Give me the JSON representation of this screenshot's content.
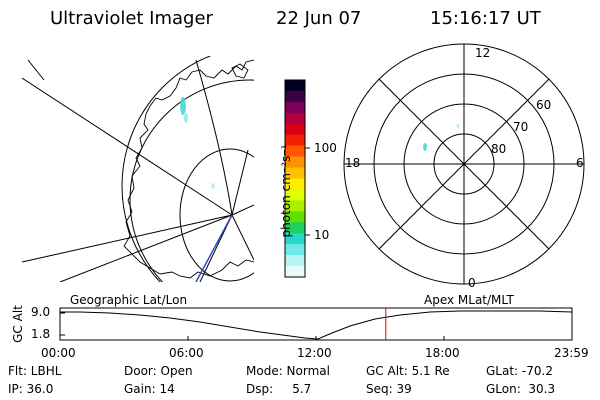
{
  "header": {
    "title": "Ultraviolet Imager",
    "date": "22 Jun 07",
    "time": "15:16:17 UT"
  },
  "colorbar": {
    "label": "photon cm⁻²s⁻¹",
    "ticks": [
      "100",
      "10"
    ],
    "colors": [
      "#000022",
      "#3a0044",
      "#7a0058",
      "#b0003c",
      "#d80018",
      "#f02000",
      "#ff5800",
      "#ff9000",
      "#ffc000",
      "#ffec00",
      "#e0ff00",
      "#a8f000",
      "#60e000",
      "#20d060",
      "#28d8c8",
      "#70e8e8",
      "#b8f4f4",
      "#e8fafa"
    ]
  },
  "geo_panel": {
    "label": "Geographic Lat/Lon"
  },
  "polar_panel": {
    "label": "Apex MLat/MLT",
    "mlt_labels": [
      "12",
      "18",
      "6",
      "0"
    ],
    "lat_labels": [
      "60",
      "70",
      "80"
    ]
  },
  "altitude_plot": {
    "ylabel": "GC Alt",
    "yticks": [
      "9.0",
      "1.8"
    ],
    "xticks": [
      "00:00",
      "06:00",
      "12:00",
      "18:00",
      "23:59"
    ],
    "marker_hours": 15.27,
    "marker_color": "#dd0000"
  },
  "info": {
    "flt": "Flt: LBHL",
    "ip": "IP: 36.0",
    "door": "Door: Open",
    "gain": "Gain: 14",
    "mode": "Mode: Normal",
    "dsp": "Dsp:     5.7",
    "gcalt": "GC Alt: 5.1 Re",
    "seq": "Seq: 39",
    "glat": "GLat: -70.2",
    "glon": "GLon:  30.3"
  }
}
